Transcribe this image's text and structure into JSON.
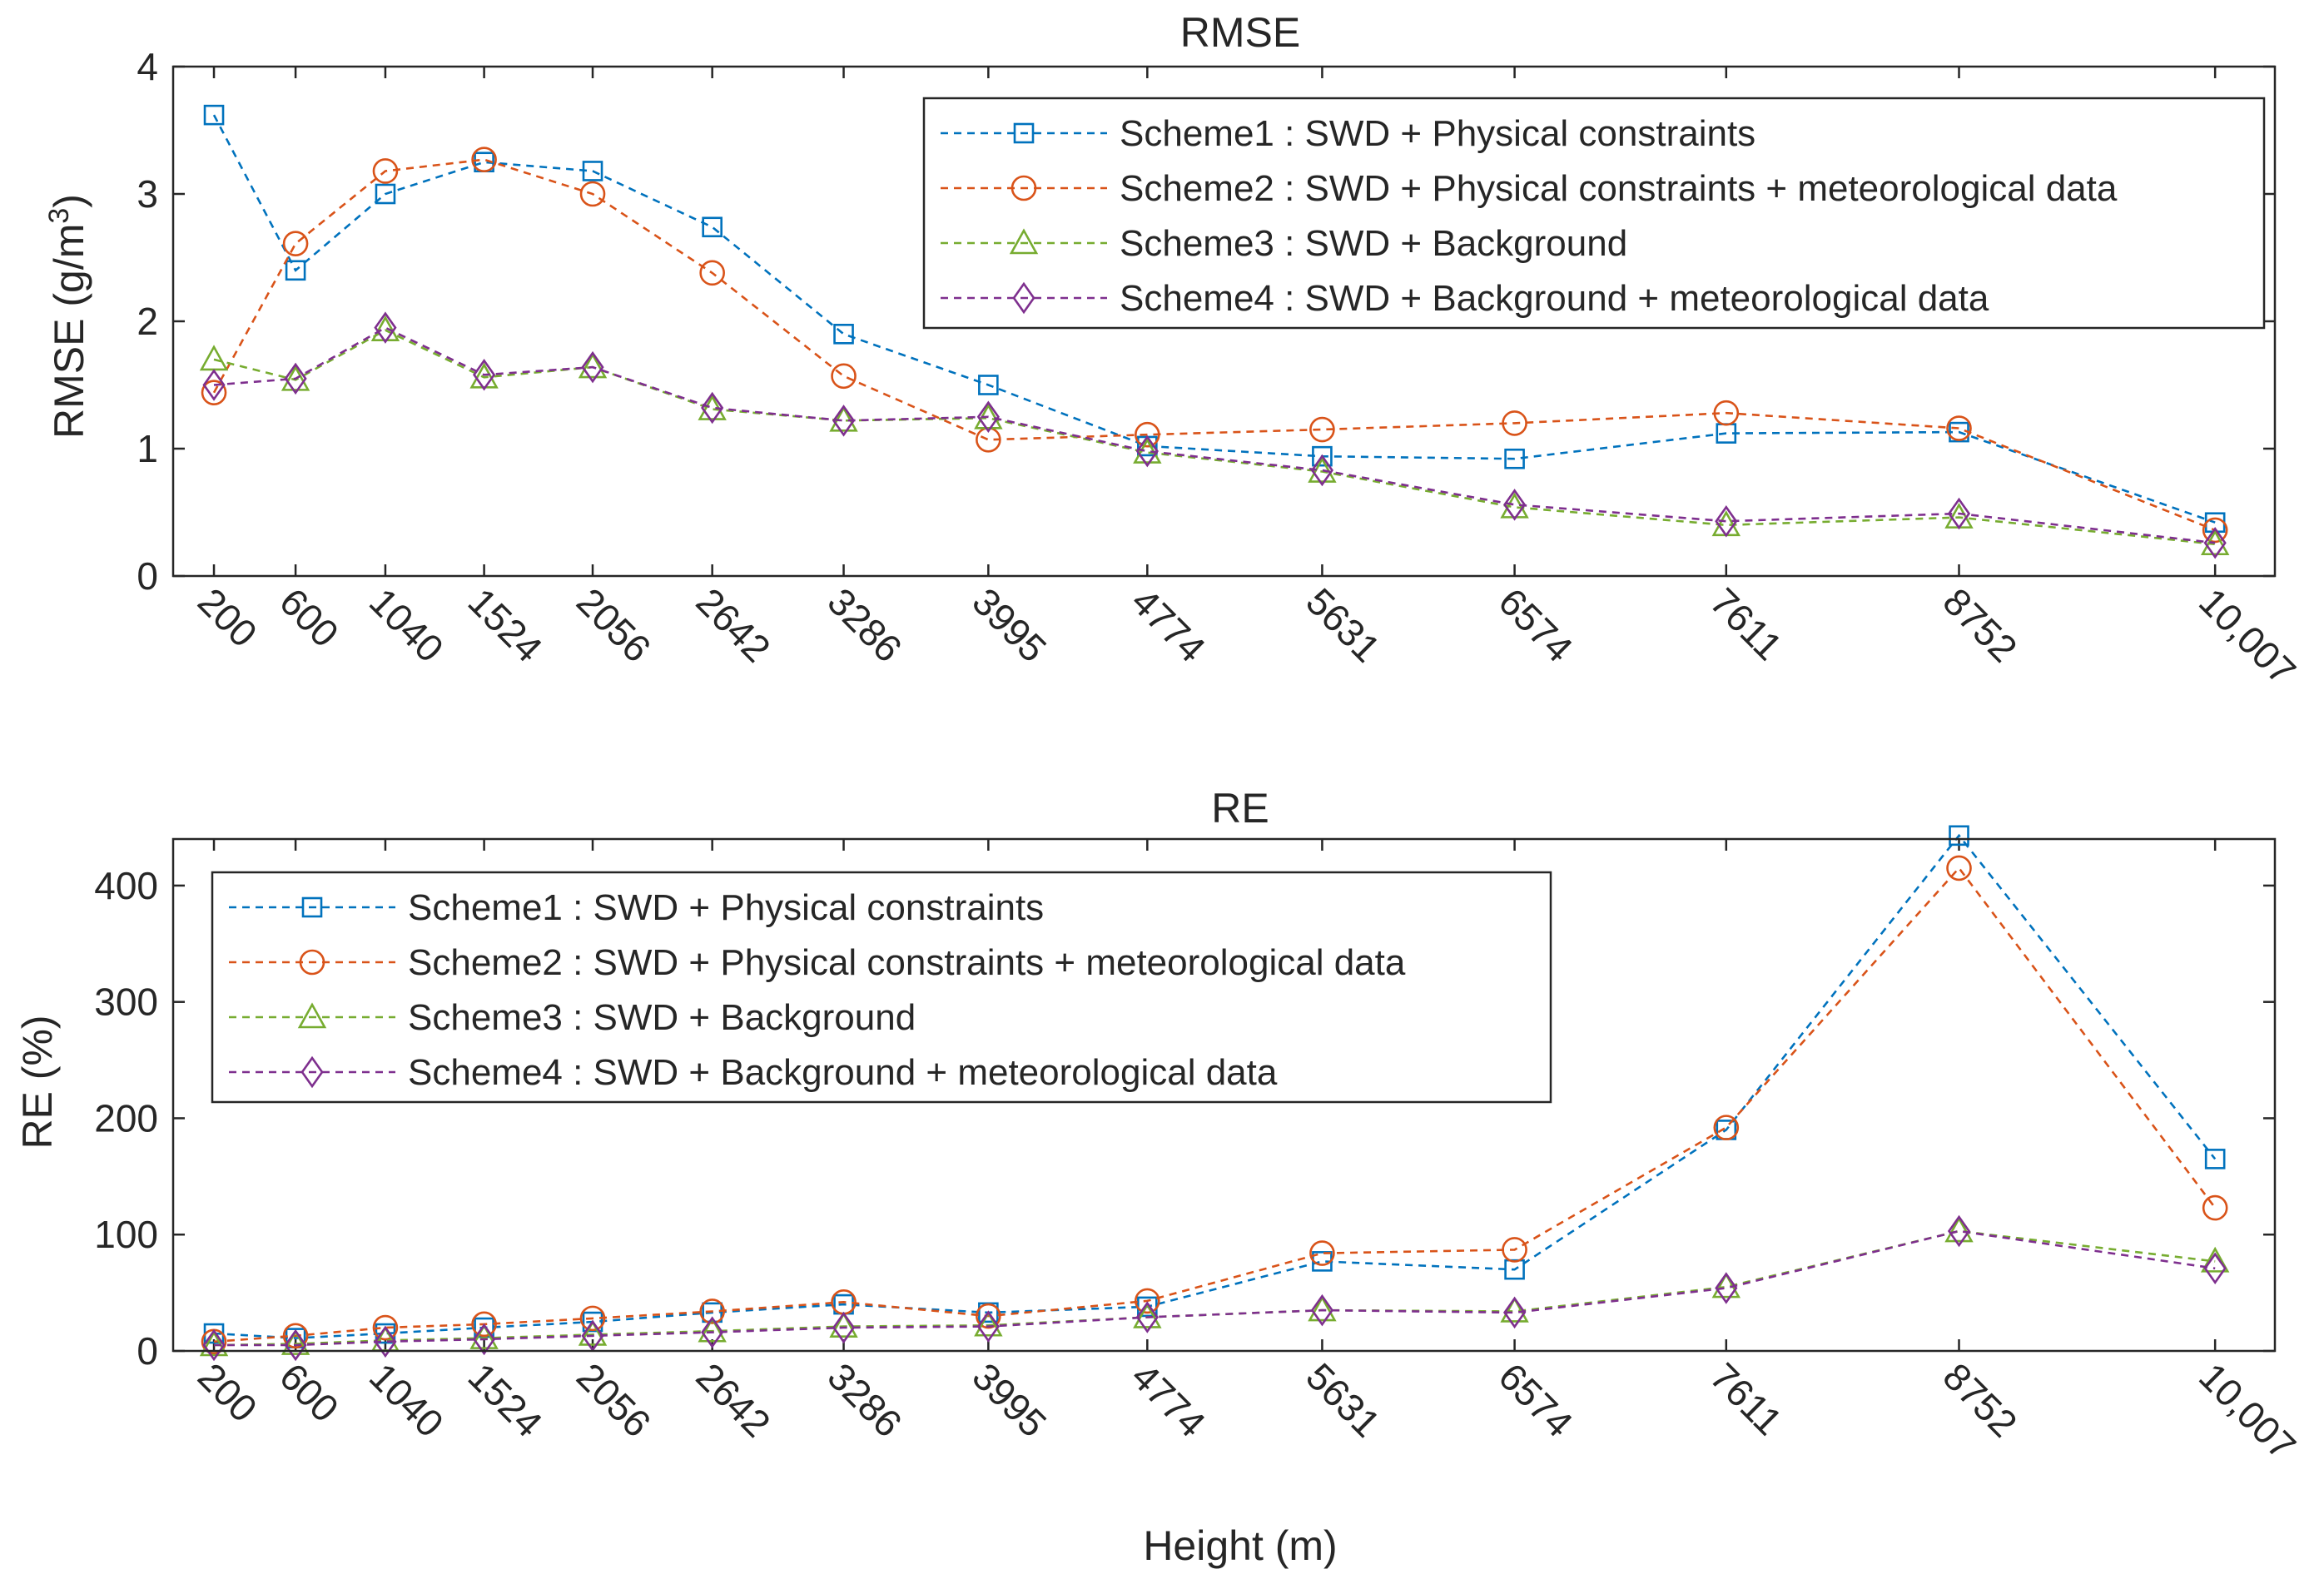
{
  "chart_data": [
    {
      "type": "line",
      "title": "RMSE",
      "xlabel": "",
      "ylabel": "RMSE (g/m",
      "ylabel_sup": "3",
      "ylabel_close": ")",
      "x": [
        200,
        600,
        1040,
        1524,
        2056,
        2642,
        3286,
        3995,
        4774,
        5631,
        6574,
        7611,
        8752,
        10007
      ],
      "x_ticklabels": [
        "200",
        "600",
        "1040",
        "1524",
        "2056",
        "2642",
        "3286",
        "3995",
        "4774",
        "5631",
        "6574",
        "7611",
        "8752",
        "10,007"
      ],
      "xlim": [
        0,
        10300
      ],
      "ylim": [
        0,
        4
      ],
      "yticks": [
        0,
        1,
        2,
        3,
        4
      ],
      "legend_position": "top-right",
      "series": [
        {
          "name": "Scheme1 : SWD + Physical constraints",
          "color": "#0072BD",
          "marker": "square",
          "values": [
            3.62,
            2.4,
            3.0,
            3.25,
            3.18,
            2.74,
            1.9,
            1.5,
            1.02,
            0.94,
            0.92,
            1.12,
            1.13,
            0.42
          ]
        },
        {
          "name": "Scheme2 : SWD + Physical constraints + meteorological data",
          "color": "#D95319",
          "marker": "circle",
          "values": [
            1.44,
            2.61,
            3.18,
            3.27,
            3.0,
            2.38,
            1.57,
            1.07,
            1.11,
            1.15,
            1.2,
            1.28,
            1.16,
            0.36
          ]
        },
        {
          "name": "Scheme3 : SWD + Background",
          "color": "#77AC30",
          "marker": "triangle",
          "values": [
            1.7,
            1.54,
            1.93,
            1.56,
            1.64,
            1.31,
            1.22,
            1.24,
            0.97,
            0.82,
            0.54,
            0.4,
            0.46,
            0.25
          ]
        },
        {
          "name": "Scheme4 : SWD + Background + meteorological data",
          "color": "#7E2F8E",
          "marker": "diamond",
          "values": [
            1.5,
            1.55,
            1.95,
            1.58,
            1.64,
            1.32,
            1.22,
            1.25,
            0.98,
            0.83,
            0.56,
            0.43,
            0.49,
            0.26
          ]
        }
      ]
    },
    {
      "type": "line",
      "title": "RE",
      "xlabel": "Height (m)",
      "ylabel": "RE (%)",
      "x": [
        200,
        600,
        1040,
        1524,
        2056,
        2642,
        3286,
        3995,
        4774,
        5631,
        6574,
        7611,
        8752,
        10007
      ],
      "x_ticklabels": [
        "200",
        "600",
        "1040",
        "1524",
        "2056",
        "2642",
        "3286",
        "3995",
        "4774",
        "5631",
        "6574",
        "7611",
        "8752",
        "10,007"
      ],
      "xlim": [
        0,
        10300
      ],
      "ylim": [
        0,
        440
      ],
      "yticks": [
        0,
        100,
        200,
        300,
        400
      ],
      "legend_position": "top-left",
      "series": [
        {
          "name": "Scheme1 : SWD + Physical constraints",
          "color": "#0072BD",
          "marker": "square",
          "values": [
            15,
            11,
            15,
            20,
            25,
            33,
            40,
            33,
            38,
            77,
            70,
            190,
            443,
            165
          ]
        },
        {
          "name": "Scheme2 : SWD + Physical constraints + meteorological data",
          "color": "#D95319",
          "marker": "circle",
          "values": [
            8,
            13,
            20,
            23,
            28,
            34,
            42,
            30,
            43,
            84,
            87,
            192,
            415,
            123
          ]
        },
        {
          "name": "Scheme3 : SWD + Background",
          "color": "#77AC30",
          "marker": "triangle",
          "values": [
            5,
            6,
            9,
            11,
            14,
            17,
            21,
            22,
            29,
            35,
            34,
            55,
            103,
            77
          ]
        },
        {
          "name": "Scheme4 : SWD + Background + meteorological data",
          "color": "#7E2F8E",
          "marker": "diamond",
          "values": [
            5,
            5,
            8,
            10,
            13,
            16,
            20,
            21,
            29,
            35,
            33,
            54,
            103,
            71
          ]
        }
      ]
    }
  ]
}
